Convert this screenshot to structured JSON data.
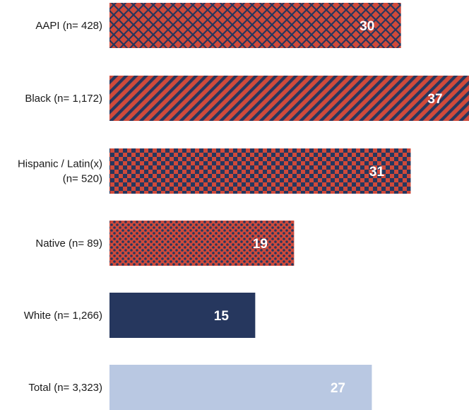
{
  "chart_data": {
    "type": "bar",
    "orientation": "horizontal",
    "categories": [
      [
        "AAPI (n= 428)"
      ],
      [
        "Black (n= 1,172)"
      ],
      [
        "Hispanic / Latin(x)",
        "(n= 520)"
      ],
      [
        "Native (n= 89)"
      ],
      [
        "White (n= 1,266)"
      ],
      [
        "Total (n= 3,323)"
      ]
    ],
    "values": [
      30,
      37,
      31,
      19,
      15,
      27
    ],
    "xlim": [
      0,
      37
    ],
    "grid": false,
    "legend": "none",
    "colors": {
      "red": "#cf4a3b",
      "navy": "#26375e",
      "light": "#b9c8e2"
    },
    "fills": [
      "crosshatch",
      "diagonal-stripes",
      "checker",
      "dots",
      "solid-navy",
      "solid-light"
    ]
  }
}
